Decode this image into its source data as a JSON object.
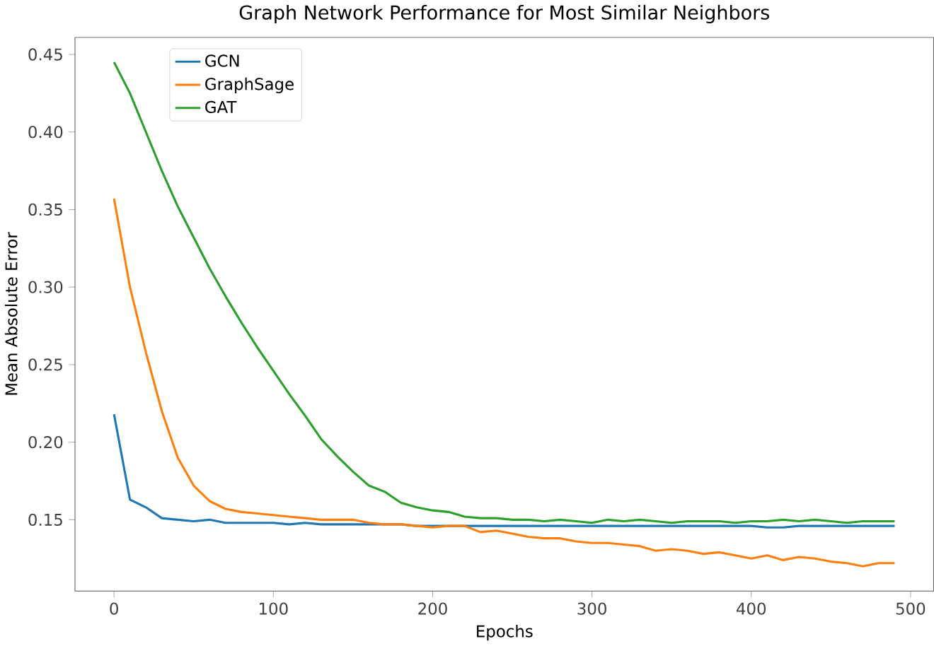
{
  "chart_data": {
    "type": "line",
    "title": "Graph Network Performance for Most Similar Neighbors",
    "xlabel": "Epochs",
    "ylabel": "Mean Absolute Error",
    "x": [
      0,
      10,
      20,
      30,
      40,
      50,
      60,
      70,
      80,
      90,
      100,
      110,
      120,
      130,
      140,
      150,
      160,
      170,
      180,
      190,
      200,
      210,
      220,
      230,
      240,
      250,
      260,
      270,
      280,
      290,
      300,
      310,
      320,
      330,
      340,
      350,
      360,
      370,
      380,
      390,
      400,
      410,
      420,
      430,
      440,
      450,
      460,
      470,
      480,
      490
    ],
    "series": [
      {
        "name": "GCN",
        "color": "#1f77b4",
        "values": [
          0.218,
          0.163,
          0.158,
          0.151,
          0.15,
          0.149,
          0.15,
          0.148,
          0.148,
          0.148,
          0.148,
          0.147,
          0.148,
          0.147,
          0.147,
          0.147,
          0.147,
          0.147,
          0.147,
          0.146,
          0.146,
          0.146,
          0.146,
          0.146,
          0.146,
          0.146,
          0.146,
          0.146,
          0.146,
          0.146,
          0.146,
          0.146,
          0.146,
          0.146,
          0.146,
          0.146,
          0.146,
          0.146,
          0.146,
          0.146,
          0.146,
          0.145,
          0.145,
          0.146,
          0.146,
          0.146,
          0.146,
          0.146,
          0.146,
          0.146
        ]
      },
      {
        "name": "GraphSage",
        "color": "#ff7f0e",
        "values": [
          0.357,
          0.3,
          0.258,
          0.22,
          0.19,
          0.172,
          0.162,
          0.157,
          0.155,
          0.154,
          0.153,
          0.152,
          0.151,
          0.15,
          0.15,
          0.15,
          0.148,
          0.147,
          0.147,
          0.146,
          0.145,
          0.146,
          0.146,
          0.142,
          0.143,
          0.141,
          0.139,
          0.138,
          0.138,
          0.136,
          0.135,
          0.135,
          0.134,
          0.133,
          0.13,
          0.131,
          0.13,
          0.128,
          0.129,
          0.127,
          0.125,
          0.127,
          0.124,
          0.126,
          0.125,
          0.123,
          0.122,
          0.12,
          0.122,
          0.122
        ]
      },
      {
        "name": "GAT",
        "color": "#2ca02c",
        "values": [
          0.445,
          0.425,
          0.4,
          0.375,
          0.352,
          0.332,
          0.312,
          0.294,
          0.277,
          0.261,
          0.246,
          0.231,
          0.217,
          0.202,
          0.191,
          0.181,
          0.172,
          0.168,
          0.161,
          0.158,
          0.156,
          0.155,
          0.152,
          0.151,
          0.151,
          0.15,
          0.15,
          0.149,
          0.15,
          0.149,
          0.148,
          0.15,
          0.149,
          0.15,
          0.149,
          0.148,
          0.149,
          0.149,
          0.149,
          0.148,
          0.149,
          0.149,
          0.15,
          0.149,
          0.15,
          0.149,
          0.148,
          0.149,
          0.149,
          0.149
        ]
      }
    ],
    "xlim": [
      -24.5,
      514.5
    ],
    "ylim": [
      0.104,
      0.461
    ],
    "xticks": [
      0,
      100,
      200,
      300,
      400,
      500
    ],
    "yticks": [
      {
        "value": 0.15,
        "label": "0.15"
      },
      {
        "value": 0.2,
        "label": "0.20"
      },
      {
        "value": 0.25,
        "label": "0.25"
      },
      {
        "value": 0.3,
        "label": "0.30"
      },
      {
        "value": 0.35,
        "label": "0.35"
      },
      {
        "value": 0.4,
        "label": "0.40"
      },
      {
        "value": 0.45,
        "label": "0.45"
      }
    ],
    "legend": "top left",
    "grid": false,
    "marker": "none",
    "line_style": "solid"
  }
}
